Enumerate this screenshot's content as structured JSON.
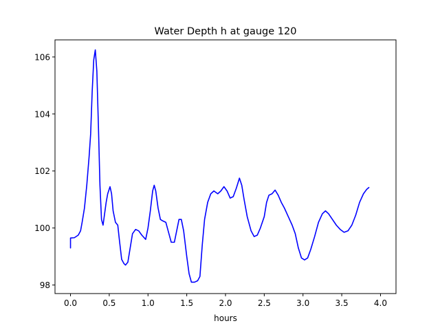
{
  "chart_data": {
    "type": "line",
    "title": "Water Depth h at gauge 120",
    "xlabel": "hours",
    "ylabel": "",
    "xlim": [
      -0.2,
      4.2
    ],
    "ylim": [
      97.7,
      106.6
    ],
    "xticks": [
      0.0,
      0.5,
      1.0,
      1.5,
      2.0,
      2.5,
      3.0,
      3.5,
      4.0
    ],
    "xtick_labels": [
      "0.0",
      "0.5",
      "1.0",
      "1.5",
      "2.0",
      "2.5",
      "3.0",
      "3.5",
      "4.0"
    ],
    "yticks": [
      98,
      100,
      102,
      104,
      106
    ],
    "ytick_labels": [
      "98",
      "100",
      "102",
      "104",
      "106"
    ],
    "grid": false,
    "series": [
      {
        "color": "#0000ff",
        "points": [
          [
            0.0,
            99.3
          ],
          [
            0.0,
            99.65
          ],
          [
            0.05,
            99.66
          ],
          [
            0.1,
            99.75
          ],
          [
            0.13,
            99.9
          ],
          [
            0.15,
            100.2
          ],
          [
            0.18,
            100.7
          ],
          [
            0.21,
            101.5
          ],
          [
            0.24,
            102.5
          ],
          [
            0.26,
            103.3
          ],
          [
            0.28,
            104.8
          ],
          [
            0.3,
            105.9
          ],
          [
            0.32,
            106.25
          ],
          [
            0.34,
            105.5
          ],
          [
            0.36,
            103.6
          ],
          [
            0.38,
            101.5
          ],
          [
            0.4,
            100.3
          ],
          [
            0.42,
            100.1
          ],
          [
            0.44,
            100.5
          ],
          [
            0.46,
            100.9
          ],
          [
            0.48,
            101.2
          ],
          [
            0.51,
            101.45
          ],
          [
            0.53,
            101.2
          ],
          [
            0.55,
            100.6
          ],
          [
            0.58,
            100.2
          ],
          [
            0.61,
            100.1
          ],
          [
            0.63,
            99.6
          ],
          [
            0.66,
            98.9
          ],
          [
            0.69,
            98.75
          ],
          [
            0.71,
            98.7
          ],
          [
            0.74,
            98.8
          ],
          [
            0.77,
            99.3
          ],
          [
            0.8,
            99.8
          ],
          [
            0.84,
            99.95
          ],
          [
            0.88,
            99.9
          ],
          [
            0.92,
            99.75
          ],
          [
            0.97,
            99.6
          ],
          [
            1.0,
            100.0
          ],
          [
            1.03,
            100.6
          ],
          [
            1.06,
            101.3
          ],
          [
            1.08,
            101.5
          ],
          [
            1.1,
            101.3
          ],
          [
            1.13,
            100.7
          ],
          [
            1.16,
            100.3
          ],
          [
            1.19,
            100.25
          ],
          [
            1.23,
            100.2
          ],
          [
            1.27,
            99.8
          ],
          [
            1.3,
            99.5
          ],
          [
            1.34,
            99.5
          ],
          [
            1.37,
            99.9
          ],
          [
            1.4,
            100.3
          ],
          [
            1.43,
            100.3
          ],
          [
            1.46,
            99.9
          ],
          [
            1.5,
            99.0
          ],
          [
            1.53,
            98.4
          ],
          [
            1.56,
            98.1
          ],
          [
            1.6,
            98.1
          ],
          [
            1.64,
            98.15
          ],
          [
            1.67,
            98.3
          ],
          [
            1.7,
            99.4
          ],
          [
            1.73,
            100.3
          ],
          [
            1.77,
            100.9
          ],
          [
            1.81,
            101.2
          ],
          [
            1.85,
            101.3
          ],
          [
            1.9,
            101.2
          ],
          [
            1.94,
            101.3
          ],
          [
            1.98,
            101.45
          ],
          [
            2.02,
            101.3
          ],
          [
            2.06,
            101.05
          ],
          [
            2.1,
            101.1
          ],
          [
            2.14,
            101.4
          ],
          [
            2.18,
            101.75
          ],
          [
            2.21,
            101.5
          ],
          [
            2.24,
            101.0
          ],
          [
            2.28,
            100.4
          ],
          [
            2.33,
            99.9
          ],
          [
            2.37,
            99.7
          ],
          [
            2.41,
            99.75
          ],
          [
            2.45,
            100.0
          ],
          [
            2.5,
            100.4
          ],
          [
            2.53,
            100.9
          ],
          [
            2.56,
            101.15
          ],
          [
            2.6,
            101.2
          ],
          [
            2.64,
            101.33
          ],
          [
            2.68,
            101.15
          ],
          [
            2.72,
            100.9
          ],
          [
            2.76,
            100.7
          ],
          [
            2.81,
            100.4
          ],
          [
            2.86,
            100.1
          ],
          [
            2.9,
            99.8
          ],
          [
            2.94,
            99.3
          ],
          [
            2.98,
            98.95
          ],
          [
            3.02,
            98.88
          ],
          [
            3.06,
            98.95
          ],
          [
            3.1,
            99.25
          ],
          [
            3.15,
            99.7
          ],
          [
            3.2,
            100.2
          ],
          [
            3.25,
            100.5
          ],
          [
            3.29,
            100.6
          ],
          [
            3.33,
            100.5
          ],
          [
            3.38,
            100.3
          ],
          [
            3.43,
            100.1
          ],
          [
            3.48,
            99.95
          ],
          [
            3.53,
            99.85
          ],
          [
            3.58,
            99.9
          ],
          [
            3.63,
            100.1
          ],
          [
            3.68,
            100.45
          ],
          [
            3.73,
            100.9
          ],
          [
            3.78,
            101.2
          ],
          [
            3.82,
            101.35
          ],
          [
            3.85,
            101.42
          ]
        ]
      }
    ]
  }
}
